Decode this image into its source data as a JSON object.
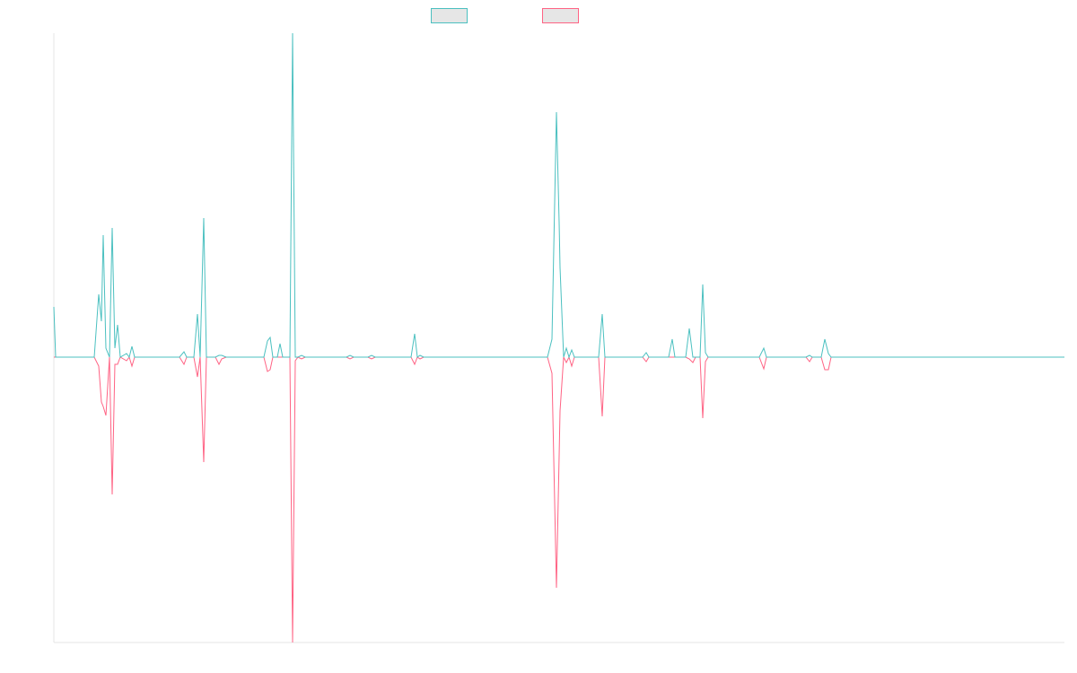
{
  "chart_data": {
    "type": "line",
    "x": [
      0,
      2,
      45,
      50,
      53,
      55,
      58,
      62,
      65,
      68,
      71,
      74,
      81,
      84,
      87,
      90,
      140,
      145,
      148,
      156,
      160,
      163,
      167,
      170,
      180,
      184,
      187,
      192,
      234,
      238,
      241,
      244,
      249,
      252,
      255,
      263,
      266,
      269,
      272,
      276,
      280,
      326,
      330,
      334,
      350,
      354,
      358,
      398,
      402,
      405,
      408,
      412,
      550,
      555,
      560,
      563,
      564,
      568,
      571,
      574,
      577,
      580,
      607,
      611,
      614,
      656,
      660,
      663,
      685,
      689,
      692,
      704,
      708,
      712,
      715,
      720,
      723,
      726,
      729,
      786,
      791,
      794,
      838,
      842,
      845,
      855,
      859,
      863,
      866,
      1126
    ],
    "xlim": [
      0,
      1126
    ],
    "ylim": [
      -318,
      361
    ],
    "series": [
      {
        "color": "#4bc0c0",
        "values": [
          56,
          0,
          0,
          70,
          40,
          136,
          10,
          0,
          144,
          10,
          36,
          0,
          4,
          0,
          12,
          0,
          0,
          6,
          0,
          0,
          48,
          0,
          155,
          0,
          0,
          2,
          2,
          0,
          0,
          18,
          22,
          0,
          0,
          15,
          0,
          0,
          361,
          0,
          0,
          2,
          0,
          0,
          2,
          0,
          0,
          2,
          0,
          0,
          26,
          0,
          2,
          0,
          0,
          20,
          273,
          150,
          100,
          0,
          10,
          0,
          8,
          0,
          0,
          48,
          0,
          0,
          5,
          0,
          0,
          20,
          0,
          0,
          32,
          0,
          0,
          0,
          81,
          5,
          0,
          0,
          10,
          0,
          0,
          2,
          0,
          0,
          20,
          4,
          0,
          0
        ]
      },
      {
        "color": "#ff6384",
        "values": [
          0,
          0,
          0,
          -10,
          -50,
          -55,
          -65,
          0,
          -153,
          -8,
          -8,
          0,
          -4,
          0,
          -10,
          0,
          0,
          -8,
          0,
          0,
          -22,
          0,
          -117,
          0,
          0,
          -8,
          -2,
          0,
          0,
          -16,
          -14,
          0,
          0,
          0,
          0,
          0,
          -318,
          -4,
          0,
          -2,
          0,
          0,
          -2,
          0,
          0,
          -2,
          0,
          0,
          -8,
          0,
          -2,
          0,
          0,
          -18,
          -257,
          -110,
          -60,
          0,
          -6,
          0,
          -10,
          0,
          0,
          -66,
          0,
          0,
          -5,
          0,
          0,
          0,
          0,
          0,
          -2,
          -6,
          0,
          0,
          -68,
          -5,
          0,
          0,
          -13,
          0,
          0,
          -5,
          0,
          0,
          -14,
          -14,
          0,
          0
        ]
      }
    ]
  }
}
